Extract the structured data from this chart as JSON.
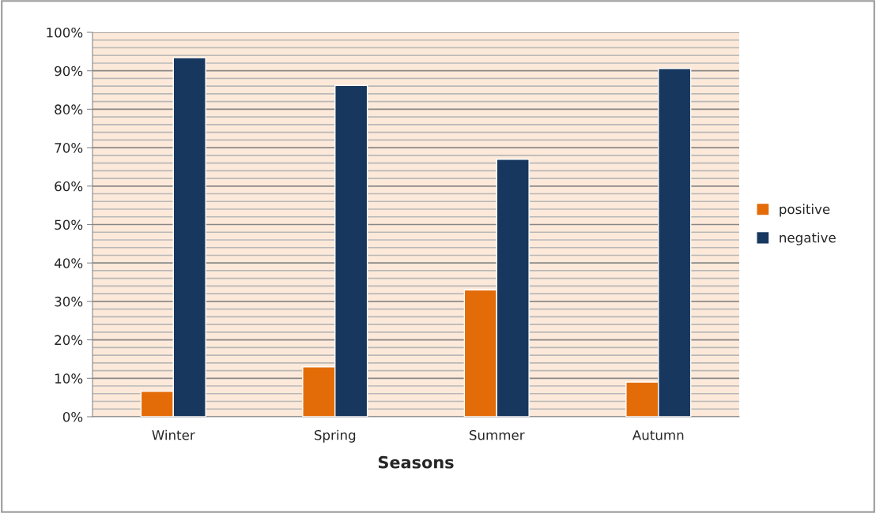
{
  "chart_data": {
    "type": "bar",
    "xlabel": "Seasons",
    "categories": [
      "Winter",
      "Spring",
      "Summer",
      "Autumn"
    ],
    "series": [
      {
        "name": "positive",
        "color": "#e36c09",
        "values": [
          6.6,
          13,
          33,
          9
        ]
      },
      {
        "name": "negative",
        "color": "#17375e",
        "values": [
          93.4,
          86.2,
          67,
          90.6
        ]
      }
    ],
    "ylim": [
      0,
      100
    ],
    "yticks": [
      {
        "value": 0,
        "label": "0%"
      },
      {
        "value": 10,
        "label": "10%"
      },
      {
        "value": 20,
        "label": "20%"
      },
      {
        "value": 30,
        "label": "30%"
      },
      {
        "value": 40,
        "label": "40%"
      },
      {
        "value": 50,
        "label": "50%"
      },
      {
        "value": 60,
        "label": "60%"
      },
      {
        "value": 70,
        "label": "70%"
      },
      {
        "value": 80,
        "label": "80%"
      },
      {
        "value": 90,
        "label": "90%"
      },
      {
        "value": 100,
        "label": "100%"
      }
    ],
    "grid": "y",
    "legend": "right"
  }
}
